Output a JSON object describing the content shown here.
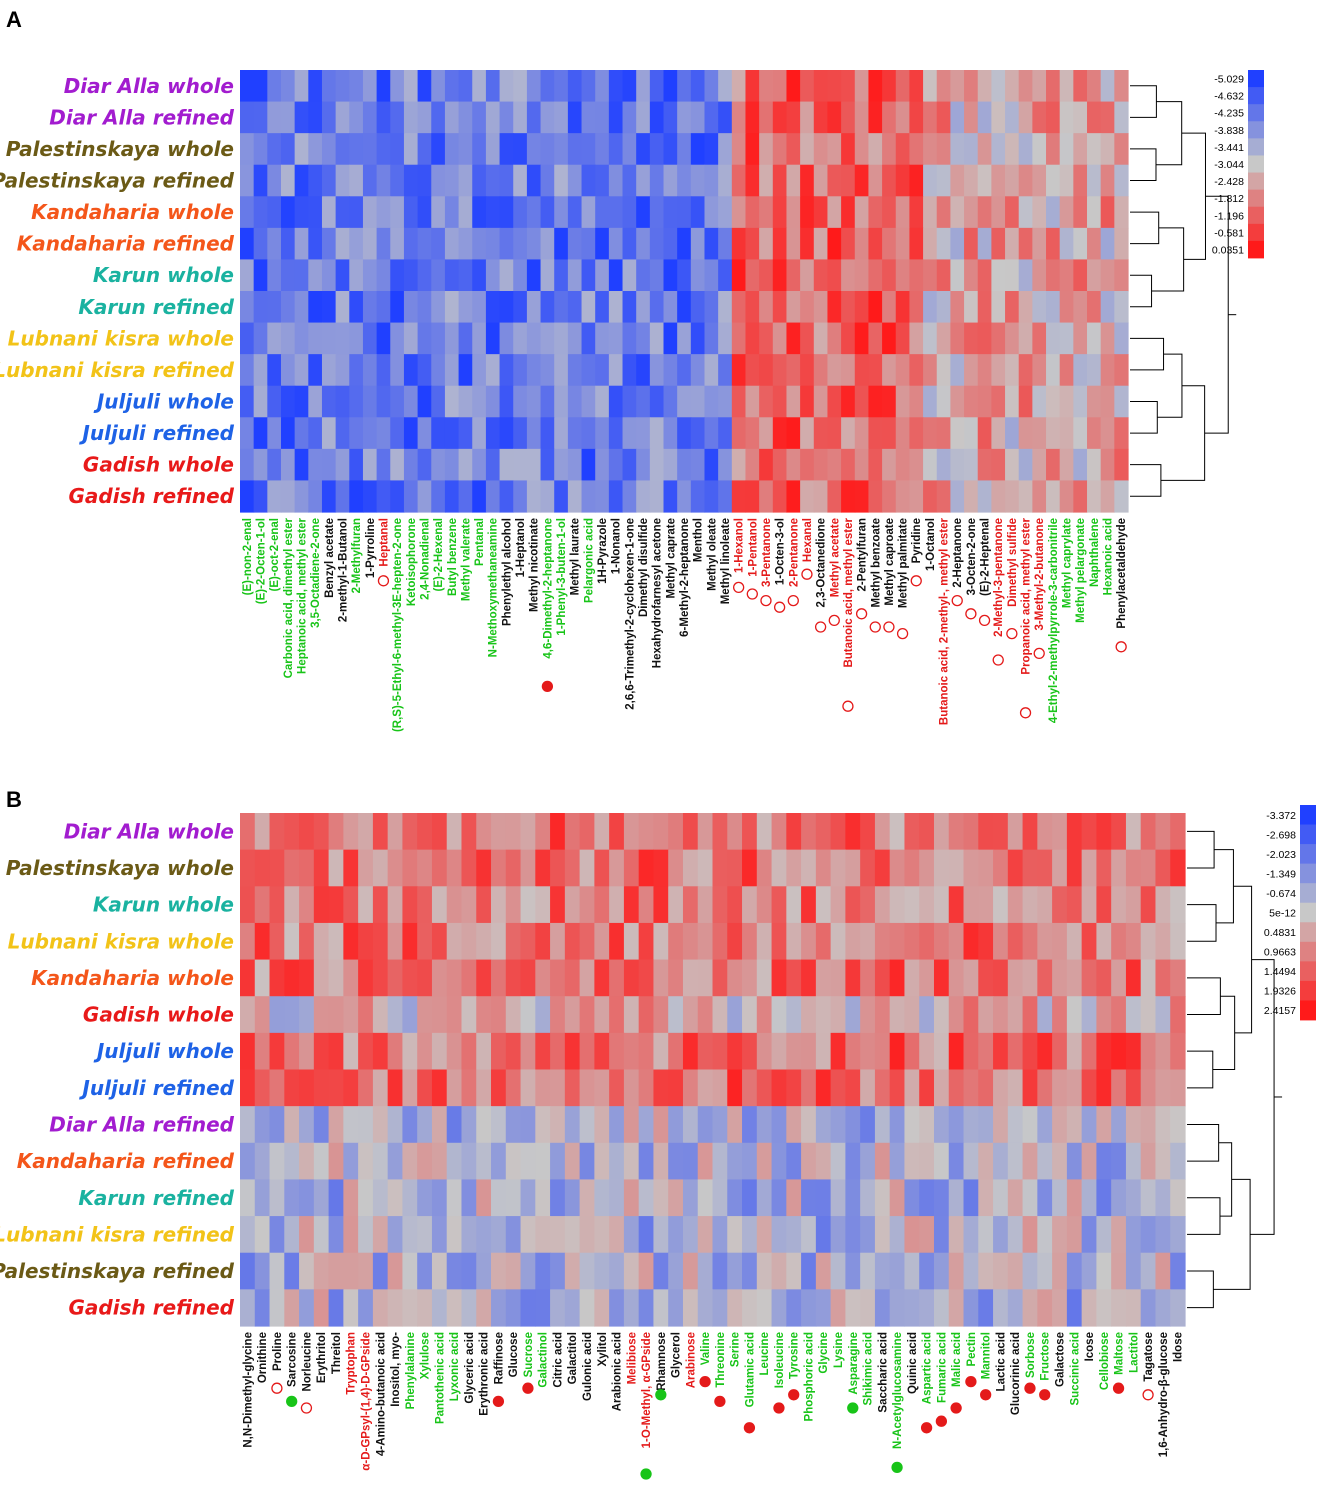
{
  "palette": {
    "low": "#2040ff",
    "mid": "#c8c8c8",
    "high": "#ff1a1a",
    "green": "#18c418",
    "red": "#e41a1a",
    "black": "#111111"
  },
  "sample_colors": {
    "Diar Alla": "#a21ccf",
    "Palestinskaya": "#6b5a16",
    "Kandaharia": "#f4561a",
    "Karun": "#1ab2a0",
    "Lubnani kisra": "#f2c318",
    "Juljuli": "#1e62e6",
    "Gadish": "#e81919"
  },
  "chart_data": [
    {
      "panel": "A",
      "type": "heatmap",
      "rows": [
        "Diar Alla whole",
        "Diar Alla refined",
        "Palestinskaya whole",
        "Palestinskaya refined",
        "Kandaharia whole",
        "Kandaharia refined",
        "Karun whole",
        "Karun refined",
        "Lubnani kisra whole",
        "Lubnani kisra refined",
        "Juljuli whole",
        "Juljuli refined",
        "Gadish whole",
        "Gadish refined"
      ],
      "columns": [
        {
          "name": "(E)-non-2-enal",
          "color": "green",
          "marker": ""
        },
        {
          "name": "(E)-2-Octen-1-ol",
          "color": "green",
          "marker": ""
        },
        {
          "name": "(E)-oct-2-enal",
          "color": "green",
          "marker": ""
        },
        {
          "name": "Carbonic acid, dimethyl ester",
          "color": "green",
          "marker": ""
        },
        {
          "name": "Heptanoic acid, methyl ester",
          "color": "green",
          "marker": ""
        },
        {
          "name": "3,5-Octadiene-2-one",
          "color": "green",
          "marker": ""
        },
        {
          "name": "Benzyl acetate",
          "color": "black",
          "marker": ""
        },
        {
          "name": "2-methyl-1-Butanol",
          "color": "black",
          "marker": ""
        },
        {
          "name": "2-Methylfuran",
          "color": "green",
          "marker": ""
        },
        {
          "name": "1-Pyrroline",
          "color": "black",
          "marker": ""
        },
        {
          "name": "Heptanal",
          "color": "red",
          "marker": "open"
        },
        {
          "name": "(R,S)-5-Ethyl-6-methyl-3E-hepten-2-one",
          "color": "green",
          "marker": ""
        },
        {
          "name": "Ketoisophorone",
          "color": "green",
          "marker": ""
        },
        {
          "name": "2,4-Nonadienal",
          "color": "green",
          "marker": ""
        },
        {
          "name": "(E)-2-Hexenal",
          "color": "green",
          "marker": ""
        },
        {
          "name": "Butyl benzene",
          "color": "green",
          "marker": ""
        },
        {
          "name": "Methyl valerate",
          "color": "green",
          "marker": ""
        },
        {
          "name": "Pentanal",
          "color": "green",
          "marker": ""
        },
        {
          "name": "N-Methoxymethaneamine",
          "color": "green",
          "marker": ""
        },
        {
          "name": "Phenylethyl alcohol",
          "color": "black",
          "marker": ""
        },
        {
          "name": "1-Heptanol",
          "color": "black",
          "marker": ""
        },
        {
          "name": "Methyl nicotinate",
          "color": "black",
          "marker": ""
        },
        {
          "name": "4,6-Dimethyl-2-heptanone",
          "color": "green",
          "marker": "filled"
        },
        {
          "name": "1-Phenyl-3-buten-1-ol",
          "color": "green",
          "marker": ""
        },
        {
          "name": "Methyl laurate",
          "color": "black",
          "marker": ""
        },
        {
          "name": "Pelargonic acid",
          "color": "green",
          "marker": ""
        },
        {
          "name": "1H-Pyrazole",
          "color": "black",
          "marker": ""
        },
        {
          "name": "1-Nonanol",
          "color": "black",
          "marker": ""
        },
        {
          "name": "2,6,6-Trimethyl-2-cyclohexen-1-one",
          "color": "black",
          "marker": ""
        },
        {
          "name": "Dimethyl disulfide",
          "color": "black",
          "marker": ""
        },
        {
          "name": "Hexahydrofarnesyl acetone",
          "color": "black",
          "marker": ""
        },
        {
          "name": "Methyl caprate",
          "color": "black",
          "marker": ""
        },
        {
          "name": "6-Methyl-2-heptanone",
          "color": "black",
          "marker": ""
        },
        {
          "name": "Menthol",
          "color": "black",
          "marker": ""
        },
        {
          "name": "Methyl oleate",
          "color": "black",
          "marker": ""
        },
        {
          "name": "Methyl linoleate",
          "color": "black",
          "marker": ""
        },
        {
          "name": "1-Hexanol",
          "color": "red",
          "marker": "open"
        },
        {
          "name": "1-Pentanol",
          "color": "red",
          "marker": "open"
        },
        {
          "name": "3-Pentanone",
          "color": "red",
          "marker": "open"
        },
        {
          "name": "1-Octen-3-ol",
          "color": "black",
          "marker": "open"
        },
        {
          "name": "2-Pentanone",
          "color": "red",
          "marker": "open"
        },
        {
          "name": "Hexanal",
          "color": "red",
          "marker": "open"
        },
        {
          "name": "2,3-Octanedione",
          "color": "black",
          "marker": "open"
        },
        {
          "name": "Methyl acetate",
          "color": "red",
          "marker": "open"
        },
        {
          "name": "Butanoic acid, methyl ester",
          "color": "red",
          "marker": "open"
        },
        {
          "name": "2-Pentylfuran",
          "color": "black",
          "marker": "open"
        },
        {
          "name": "Methyl benzoate",
          "color": "black",
          "marker": "open"
        },
        {
          "name": "Methyl caproate",
          "color": "black",
          "marker": "open"
        },
        {
          "name": "Methyl palmitate",
          "color": "black",
          "marker": "open"
        },
        {
          "name": "Pyridine",
          "color": "black",
          "marker": "open"
        },
        {
          "name": "1-Octanol",
          "color": "black",
          "marker": ""
        },
        {
          "name": "Butanoic acid, 2-methyl-, methyl ester",
          "color": "red",
          "marker": ""
        },
        {
          "name": "2-Heptanone",
          "color": "black",
          "marker": "open"
        },
        {
          "name": "3-Octen-2-one",
          "color": "black",
          "marker": "open"
        },
        {
          "name": "(E)-2-Heptenal",
          "color": "black",
          "marker": "open"
        },
        {
          "name": "2-Methyl-3-pentanone",
          "color": "red",
          "marker": "open"
        },
        {
          "name": "Dimethyl sulfide",
          "color": "red",
          "marker": "open"
        },
        {
          "name": "Propanoic acid, methyl ester",
          "color": "red",
          "marker": "open"
        },
        {
          "name": "3-Methyl-2-butanone",
          "color": "red",
          "marker": "open"
        },
        {
          "name": "4-Ethyl-2-methylpyrrole-3-carbonitrile",
          "color": "green",
          "marker": ""
        },
        {
          "name": "Methyl caprylate",
          "color": "green",
          "marker": ""
        },
        {
          "name": "Methyl pelargonate",
          "color": "green",
          "marker": ""
        },
        {
          "name": "Naphthalene",
          "color": "green",
          "marker": ""
        },
        {
          "name": "Hexanoic acid",
          "color": "green",
          "marker": ""
        },
        {
          "name": "Phenylacetaldehyde",
          "color": "black",
          "marker": "open"
        }
      ],
      "legend": [
        "-5.029",
        "-4.632",
        "-4.235",
        "-3.838",
        "-3.441",
        "-3.044",
        "-2.428",
        "-1.812",
        "-1.196",
        "-0.581",
        "0.0351"
      ],
      "value_range": [
        -5.029,
        0.0351
      ],
      "column_group_means": [
        {
          "columns": [
            0,
            35
          ],
          "mean": -4.0
        },
        {
          "columns": [
            36,
            49
          ],
          "mean": -1.0
        },
        {
          "columns": [
            50,
            64
          ],
          "mean": -2.0
        }
      ]
    },
    {
      "panel": "B",
      "type": "heatmap",
      "rows": [
        "Diar Alla whole",
        "Palestinskaya whole",
        "Karun whole",
        "Lubnani kisra whole",
        "Kandaharia whole",
        "Gadish whole",
        "Juljuli whole",
        "Juljuli refined",
        "Diar Alla refined",
        "Kandaharia refined",
        "Karun refined",
        "Lubnani kisra refined",
        "Palestinskaya refined",
        "Gadish refined"
      ],
      "columns": [
        {
          "name": "N,N-Dimethyl-glycine",
          "color": "black",
          "marker": ""
        },
        {
          "name": "Ornithine",
          "color": "black",
          "marker": ""
        },
        {
          "name": "Proline",
          "color": "black",
          "marker": "open"
        },
        {
          "name": "Sarcosine",
          "color": "black",
          "marker": "filled-green-open"
        },
        {
          "name": "Norleucine",
          "color": "black",
          "marker": "open"
        },
        {
          "name": "Erythritol",
          "color": "black",
          "marker": ""
        },
        {
          "name": "Threitol",
          "color": "black",
          "marker": ""
        },
        {
          "name": "Tryptophan",
          "color": "red",
          "marker": ""
        },
        {
          "name": "α-D-GPsyl-(1,4)-D-GPside",
          "color": "red",
          "marker": ""
        },
        {
          "name": "4-Amino-butanoic acid",
          "color": "black",
          "marker": ""
        },
        {
          "name": "Inositol, myo-",
          "color": "black",
          "marker": ""
        },
        {
          "name": "Phenylalanine",
          "color": "green",
          "marker": ""
        },
        {
          "name": "Xylulose",
          "color": "green",
          "marker": ""
        },
        {
          "name": "Pantothenic acid",
          "color": "green",
          "marker": ""
        },
        {
          "name": "Lyxonic acid",
          "color": "green",
          "marker": ""
        },
        {
          "name": "Glyceric acid",
          "color": "black",
          "marker": ""
        },
        {
          "name": "Erythronic acid",
          "color": "black",
          "marker": ""
        },
        {
          "name": "Raffinose",
          "color": "black",
          "marker": "filled"
        },
        {
          "name": "Glucose",
          "color": "black",
          "marker": ""
        },
        {
          "name": "Sucrose",
          "color": "green",
          "marker": "filled"
        },
        {
          "name": "Galactinol",
          "color": "green",
          "marker": ""
        },
        {
          "name": "Citric acid",
          "color": "black",
          "marker": ""
        },
        {
          "name": "Galactitol",
          "color": "black",
          "marker": ""
        },
        {
          "name": "Gulonic acid",
          "color": "black",
          "marker": ""
        },
        {
          "name": "Xylitol",
          "color": "black",
          "marker": ""
        },
        {
          "name": "Arabionic acid",
          "color": "black",
          "marker": ""
        },
        {
          "name": "Melibiose",
          "color": "red",
          "marker": ""
        },
        {
          "name": "1-O-Methyl, α-GPside",
          "color": "red",
          "marker": "filled-green"
        },
        {
          "name": "Rhamnose",
          "color": "black",
          "marker": "filled-green"
        },
        {
          "name": "Glycerol",
          "color": "black",
          "marker": ""
        },
        {
          "name": "Arabinose",
          "color": "red",
          "marker": ""
        },
        {
          "name": "Valine",
          "color": "green",
          "marker": "filled"
        },
        {
          "name": "Threonine",
          "color": "green",
          "marker": "filled"
        },
        {
          "name": "Serine",
          "color": "green",
          "marker": ""
        },
        {
          "name": "Glutamic acid",
          "color": "green",
          "marker": "filled"
        },
        {
          "name": "Leucine",
          "color": "green",
          "marker": ""
        },
        {
          "name": "Isoleucine",
          "color": "green",
          "marker": "filled"
        },
        {
          "name": "Tyrosine",
          "color": "green",
          "marker": "filled"
        },
        {
          "name": "Phosphoric acid",
          "color": "green",
          "marker": ""
        },
        {
          "name": "Glycine",
          "color": "green",
          "marker": ""
        },
        {
          "name": "Lysine",
          "color": "green",
          "marker": ""
        },
        {
          "name": "Asparagine",
          "color": "green",
          "marker": "filled-green"
        },
        {
          "name": "Shikimic acid",
          "color": "green",
          "marker": ""
        },
        {
          "name": "Saccharic acid",
          "color": "black",
          "marker": ""
        },
        {
          "name": "N-Acetylglucosamine",
          "color": "green",
          "marker": "filled-green-open"
        },
        {
          "name": "Quinic acid",
          "color": "black",
          "marker": ""
        },
        {
          "name": "Aspartic acid",
          "color": "green",
          "marker": "filled"
        },
        {
          "name": "Fumaric acid",
          "color": "green",
          "marker": "filled"
        },
        {
          "name": "Malic acid",
          "color": "green",
          "marker": "filled"
        },
        {
          "name": "Pectin",
          "color": "green",
          "marker": "filled"
        },
        {
          "name": "Mannitol",
          "color": "green",
          "marker": "filled"
        },
        {
          "name": "Lactic acid",
          "color": "black",
          "marker": ""
        },
        {
          "name": "Glucorinic acid",
          "color": "black",
          "marker": ""
        },
        {
          "name": "Sorbose",
          "color": "green",
          "marker": "filled"
        },
        {
          "name": "Fructose",
          "color": "green",
          "marker": "filled"
        },
        {
          "name": "Galactose",
          "color": "black",
          "marker": ""
        },
        {
          "name": "Succinic acid",
          "color": "green",
          "marker": ""
        },
        {
          "name": "Icose",
          "color": "black",
          "marker": ""
        },
        {
          "name": "Cellobiose",
          "color": "green",
          "marker": ""
        },
        {
          "name": "Maltose",
          "color": "green",
          "marker": "filled"
        },
        {
          "name": "Lactitol",
          "color": "green",
          "marker": ""
        },
        {
          "name": "Tagatose",
          "color": "black",
          "marker": "open"
        },
        {
          "name": "1,6-Anhydro-β-glucose",
          "color": "black",
          "marker": ""
        },
        {
          "name": "Idose",
          "color": "black",
          "marker": ""
        }
      ],
      "legend": [
        "-3.372",
        "-2.698",
        "-2.023",
        "-1.349",
        "-0.674",
        "5e-12",
        "0.4831",
        "0.9663",
        "1.4494",
        "1.9326",
        "2.4157"
      ],
      "value_range": [
        -3.372,
        2.4157
      ],
      "row_group_means": [
        {
          "rows": [
            0,
            4
          ],
          "mean": 0.9
        },
        {
          "rows": [
            5,
            5
          ],
          "mean": -0.1
        },
        {
          "rows": [
            6,
            7
          ],
          "mean": 1.0
        },
        {
          "rows": [
            8,
            13
          ],
          "mean": -0.9
        }
      ]
    }
  ]
}
